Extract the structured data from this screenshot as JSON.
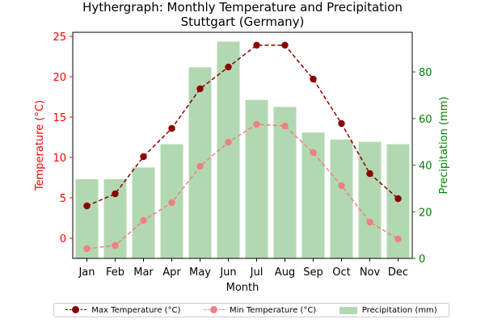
{
  "chart_data": {
    "type": "bar+line",
    "title": "Hythergraph: Monthly Temperature and Precipitation\nStuttgart (Germany)",
    "xlabel": "Month",
    "ylabel_left": "Temperature (°C)",
    "ylabel_right": "Precipitation (mm)",
    "categories": [
      "Jan",
      "Feb",
      "Mar",
      "Apr",
      "May",
      "Jun",
      "Jul",
      "Aug",
      "Sep",
      "Oct",
      "Nov",
      "Dec"
    ],
    "ylim_left": [
      -2.5,
      25.5
    ],
    "yticks_left": [
      0,
      5,
      10,
      15,
      20,
      25
    ],
    "ylim_right": [
      0,
      97
    ],
    "yticks_right": [
      0,
      20,
      40,
      60,
      80
    ],
    "grid": false,
    "legend_position": "bottom-center",
    "series": [
      {
        "name": "Max Temperature (°C)",
        "kind": "line",
        "axis": "left",
        "color": "#8b0000",
        "linestyle": "dashed",
        "marker": "circle",
        "values": [
          4.0,
          5.5,
          10.1,
          13.6,
          18.5,
          21.2,
          23.9,
          23.9,
          19.7,
          14.2,
          8.0,
          4.9
        ]
      },
      {
        "name": "Min Temperature (°C)",
        "kind": "line",
        "axis": "left",
        "color": "#f08080",
        "linestyle": "dashed",
        "marker": "circle",
        "values": [
          -1.3,
          -0.9,
          2.2,
          4.4,
          8.9,
          11.9,
          14.1,
          13.9,
          10.6,
          6.5,
          2.0,
          -0.1
        ]
      },
      {
        "name": "Precipitation (mm)",
        "kind": "bar",
        "axis": "right",
        "color": "#b2d8b2",
        "values": [
          34,
          34,
          39,
          49,
          82,
          93,
          68,
          65,
          54,
          51,
          50,
          49
        ]
      }
    ]
  },
  "colors": {
    "left_axis": "#ff0000",
    "right_axis": "#008000"
  }
}
